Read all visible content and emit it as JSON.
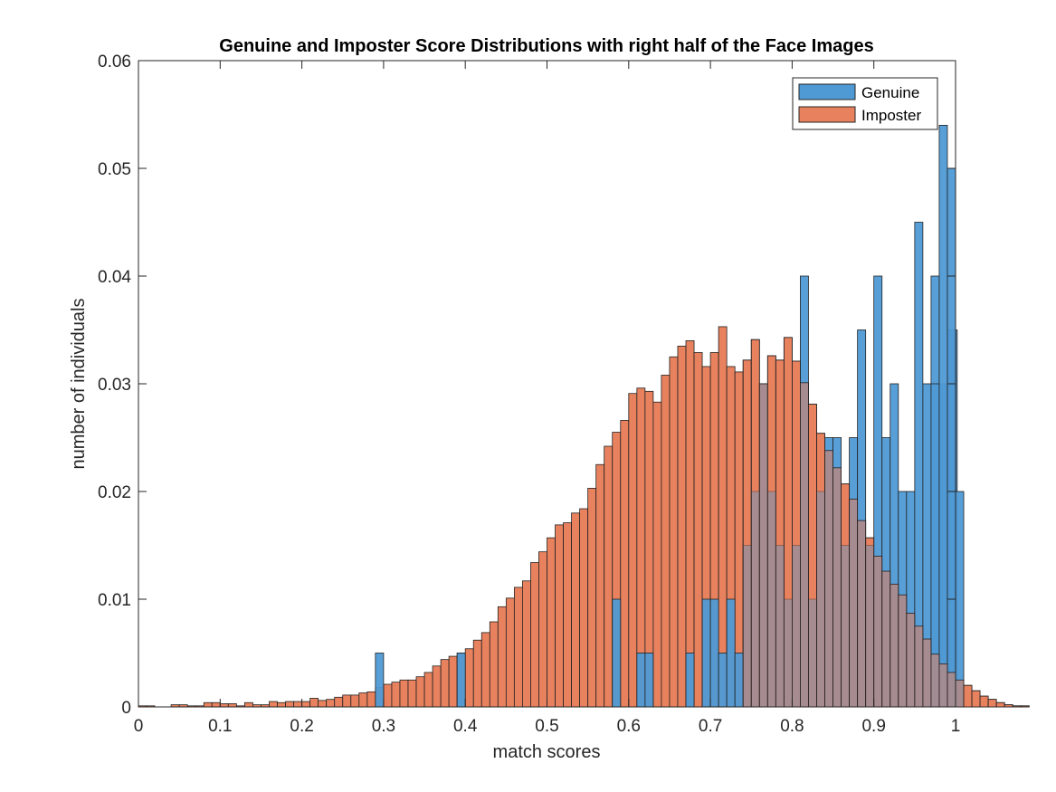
{
  "chart_data": {
    "type": "bar",
    "title": "Genuine and Imposter Score Distributions with right half of the Face Images",
    "xlabel": "match scores",
    "ylabel": "number of individuals",
    "xlim": [
      0,
      1
    ],
    "ylim": [
      0,
      0.06
    ],
    "xticks": [
      "0",
      "0.1",
      "0.2",
      "0.3",
      "0.4",
      "0.5",
      "0.6",
      "0.7",
      "0.8",
      "0.9",
      "1"
    ],
    "yticks": [
      "0",
      "0.01",
      "0.02",
      "0.03",
      "0.04",
      "0.05",
      "0.06"
    ],
    "grid": false,
    "legend_position": "top-right",
    "bin_width": 0.01,
    "series": [
      {
        "name": "Genuine",
        "color": "#4f9ad5",
        "bins": [
          [
            0.29,
            0.005
          ],
          [
            0.39,
            0.005
          ],
          [
            0.58,
            0.01
          ],
          [
            0.61,
            0.005
          ],
          [
            0.62,
            0.005
          ],
          [
            0.67,
            0.005
          ],
          [
            0.69,
            0.01
          ],
          [
            0.7,
            0.01
          ],
          [
            0.71,
            0.005
          ],
          [
            0.72,
            0.01
          ],
          [
            0.73,
            0.005
          ],
          [
            0.74,
            0.015
          ],
          [
            0.75,
            0.02
          ],
          [
            0.76,
            0.03
          ],
          [
            0.77,
            0.02
          ],
          [
            0.78,
            0.015
          ],
          [
            0.79,
            0.01
          ],
          [
            0.8,
            0.015
          ],
          [
            0.81,
            0.04
          ],
          [
            0.82,
            0.01
          ],
          [
            0.83,
            0.02
          ],
          [
            0.84,
            0.025
          ],
          [
            0.85,
            0.025
          ],
          [
            0.86,
            0.015
          ],
          [
            0.87,
            0.025
          ],
          [
            0.88,
            0.035
          ],
          [
            0.89,
            0.015
          ],
          [
            0.9,
            0.04
          ],
          [
            0.91,
            0.025
          ],
          [
            0.92,
            0.03
          ],
          [
            0.93,
            0.02
          ],
          [
            0.94,
            0.02
          ],
          [
            0.95,
            0.045
          ],
          [
            0.96,
            0.03
          ],
          [
            0.97,
            0.04
          ],
          [
            0.98,
            0.03
          ],
          [
            0.99,
            0.035
          ],
          [
            0.992,
            0.035
          ],
          [
            0.97,
            0.03
          ],
          [
            0.98,
            0.054
          ],
          [
            0.99,
            0.05
          ],
          [
            1.0,
            0.02
          ]
        ]
      },
      {
        "name": "Imposter",
        "color": "#e8825e",
        "values": [
          0.0001,
          0.0001,
          0.0,
          0.0,
          0.0002,
          0.0002,
          0.0001,
          0.0001,
          0.0004,
          0.0004,
          0.0003,
          0.0003,
          0.0001,
          0.0004,
          0.0002,
          0.0002,
          0.0005,
          0.0004,
          0.0005,
          0.0005,
          0.0005,
          0.0008,
          0.0006,
          0.0007,
          0.0009,
          0.0011,
          0.0011,
          0.0013,
          0.0014,
          0.0018,
          0.0021,
          0.0023,
          0.0025,
          0.0025,
          0.0028,
          0.0032,
          0.0038,
          0.0044,
          0.0047,
          0.005,
          0.0054,
          0.0062,
          0.0069,
          0.0079,
          0.0093,
          0.0101,
          0.0111,
          0.0117,
          0.0134,
          0.0144,
          0.0157,
          0.0169,
          0.0171,
          0.018,
          0.0184,
          0.0203,
          0.0225,
          0.0242,
          0.0255,
          0.0266,
          0.0291,
          0.0296,
          0.0293,
          0.0283,
          0.0308,
          0.0325,
          0.0335,
          0.034,
          0.0329,
          0.0316,
          0.0329,
          0.0353,
          0.0316,
          0.0311,
          0.0322,
          0.0341,
          0.03,
          0.0326,
          0.0322,
          0.0343,
          0.0321,
          0.0301,
          0.0281,
          0.0254,
          0.0238,
          0.0222,
          0.0207,
          0.0193,
          0.0173,
          0.0157,
          0.014,
          0.0126,
          0.0114,
          0.0104,
          0.0087,
          0.0075,
          0.0063,
          0.0049,
          0.004,
          0.0032,
          0.0025,
          0.002,
          0.0015,
          0.001,
          0.0007,
          0.0004,
          0.0002,
          0.0001,
          0.0001,
          0.0
        ]
      }
    ]
  }
}
